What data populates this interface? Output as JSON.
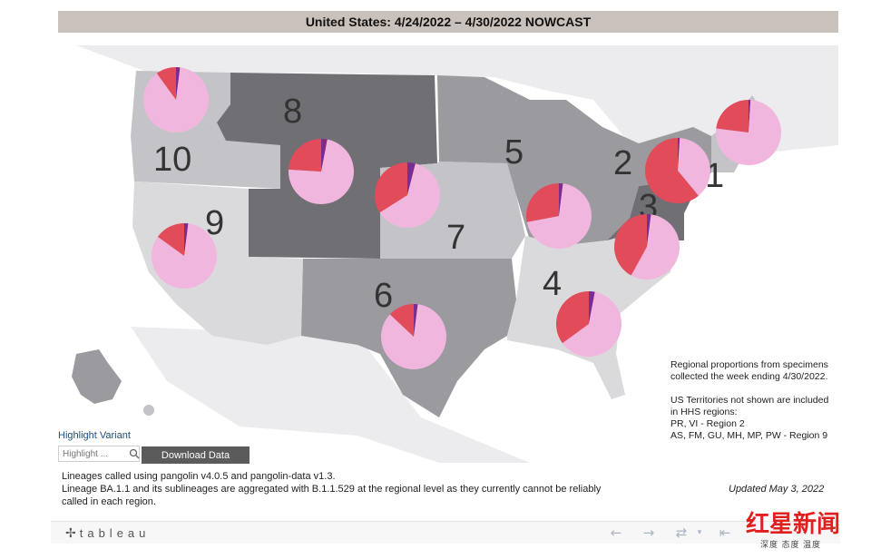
{
  "title": "United States: 4/24/2022 – 4/30/2022 NOWCAST",
  "colors": {
    "pie_main": "#f1b6dd",
    "pie_secondary": "#e14b5a",
    "pie_tertiary": "#7a2c8f",
    "region_dark": "#6f6f74",
    "region_mid": "#9a9a9f",
    "region_light": "#c4c4c8",
    "region_pale": "#dadadd"
  },
  "regions": [
    {
      "label": "1",
      "pie": {
        "main": 0.76,
        "secondary": 0.23,
        "tertiary": 0.01
      }
    },
    {
      "label": "2",
      "pie": {
        "main": 0.38,
        "secondary": 0.61,
        "tertiary": 0.01
      }
    },
    {
      "label": "3",
      "pie": {
        "main": 0.56,
        "secondary": 0.42,
        "tertiary": 0.02
      }
    },
    {
      "label": "4",
      "pie": {
        "main": 0.62,
        "secondary": 0.35,
        "tertiary": 0.03
      }
    },
    {
      "label": "5",
      "pie": {
        "main": 0.7,
        "secondary": 0.28,
        "tertiary": 0.02
      }
    },
    {
      "label": "6",
      "pie": {
        "main": 0.85,
        "secondary": 0.13,
        "tertiary": 0.02
      }
    },
    {
      "label": "7",
      "pie": {
        "main": 0.62,
        "secondary": 0.34,
        "tertiary": 0.04
      }
    },
    {
      "label": "8",
      "pie": {
        "main": 0.73,
        "secondary": 0.24,
        "tertiary": 0.03
      }
    },
    {
      "label": "9",
      "pie": {
        "main": 0.83,
        "secondary": 0.15,
        "tertiary": 0.02
      }
    },
    {
      "label": "10",
      "pie": {
        "main": 0.88,
        "secondary": 0.1,
        "tertiary": 0.02
      }
    }
  ],
  "notes": {
    "line1": "Regional proportions from specimens",
    "line2": "collected the week ending 4/30/2022.",
    "line3": "US Territories not shown are included",
    "line4": "in HHS regions:",
    "line5": "PR, VI - Region 2",
    "line6": "AS, FM, GU, MH, MP, PW - Region 9"
  },
  "highlight": {
    "label": "Highlight Variant",
    "placeholder": "Highlight ..."
  },
  "download_label": "Download Data",
  "footnote": {
    "line1": "Lineages called using pangolin v4.0.5 and pangolin-data v1.3.",
    "line2": "Lineage BA.1.1 and its sublineages are aggregated with B.1.1.529 at the regional level as they currently cannot be reliably",
    "line3": "called in each region."
  },
  "updated": "Updated May 3, 2022",
  "toolbar": {
    "logo": "tableau",
    "undo_icon": "undo-arrow-icon",
    "redo_icon": "redo-arrow-icon",
    "revert_icon": "revert-icon",
    "first_icon": "first-page-icon"
  },
  "watermark": {
    "main": "红星新闻",
    "sub": "深度 态度 温度"
  }
}
